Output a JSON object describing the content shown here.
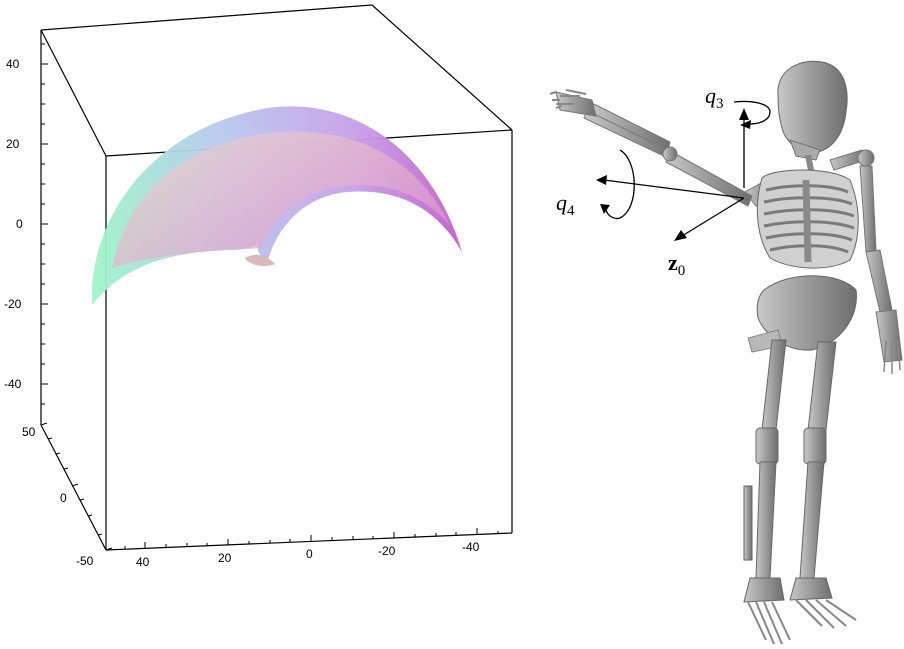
{
  "plot3d": {
    "z_tick_labels": [
      "40",
      "20",
      "0",
      "-20",
      "-40"
    ],
    "y_tick_labels": [
      "50",
      "0",
      "-50"
    ],
    "x_tick_labels": [
      "40",
      "20",
      "0",
      "-20",
      "-40"
    ],
    "surface_colors": [
      "#9ff5c8",
      "#a4a8f8",
      "#c874d8",
      "#e8c8c0"
    ]
  },
  "skeleton": {
    "labels": {
      "q3_var": "q",
      "q3_sub": "3",
      "q4_var": "q",
      "q4_sub": "4",
      "z0_var": "z",
      "z0_sub": "0"
    },
    "bone_color": "#9a9a9a"
  }
}
